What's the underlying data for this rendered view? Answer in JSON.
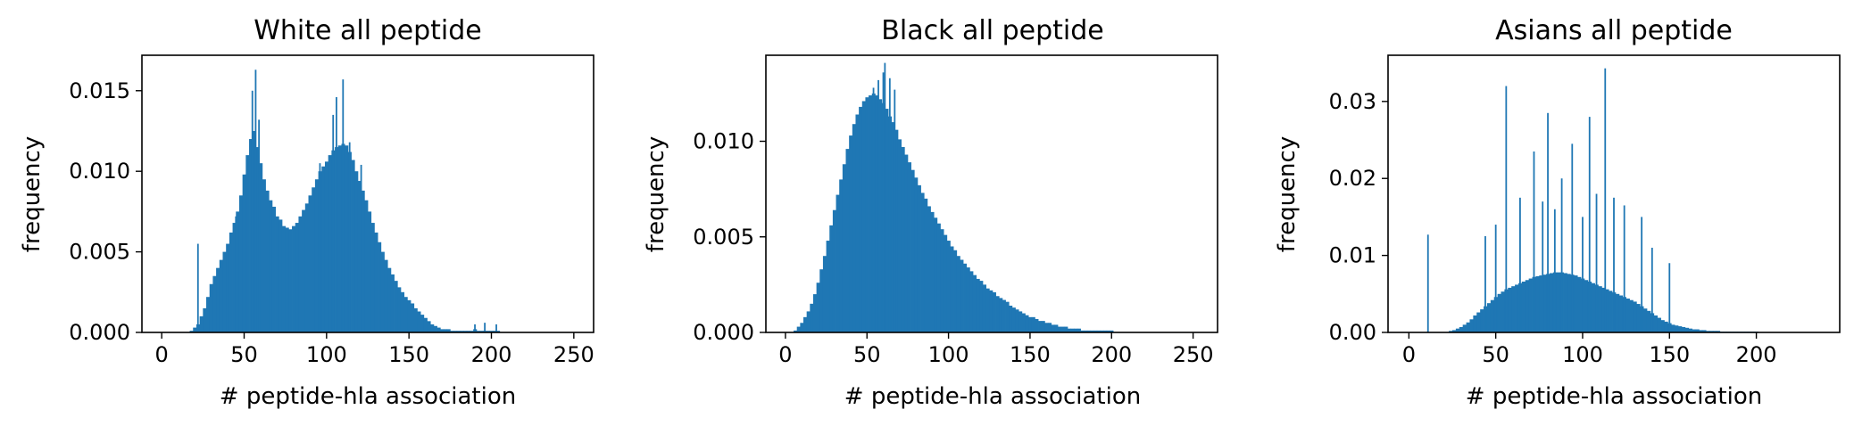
{
  "chart_data": [
    {
      "type": "bar",
      "title": "White  all peptide",
      "xlabel": "# peptide-hla association",
      "ylabel": "frequency",
      "xlim": [
        -12,
        262
      ],
      "ylim": [
        0,
        0.0172
      ],
      "xticks": [
        "0",
        "50",
        "100",
        "150",
        "200",
        "250"
      ],
      "yticks": [
        "0.000",
        "0.005",
        "0.010",
        "0.015"
      ],
      "x": [
        18,
        20,
        22,
        24,
        26,
        28,
        30,
        32,
        34,
        36,
        38,
        40,
        42,
        44,
        46,
        48,
        50,
        52,
        54,
        56,
        58,
        60,
        62,
        64,
        66,
        68,
        70,
        72,
        74,
        76,
        78,
        80,
        82,
        84,
        86,
        88,
        90,
        92,
        94,
        96,
        98,
        100,
        102,
        104,
        106,
        108,
        110,
        112,
        114,
        116,
        118,
        120,
        122,
        124,
        126,
        128,
        130,
        132,
        134,
        136,
        138,
        140,
        142,
        144,
        146,
        148,
        150,
        152,
        154,
        156,
        158,
        160,
        162,
        164,
        166,
        168,
        170,
        172,
        174,
        176,
        178,
        180,
        182,
        184,
        186,
        188,
        190,
        192,
        194,
        196,
        198,
        200,
        202,
        204
      ],
      "values": [
        0.0001,
        0.0003,
        0.0005,
        0.001,
        0.0015,
        0.0022,
        0.003,
        0.0035,
        0.004,
        0.0045,
        0.005,
        0.0055,
        0.0062,
        0.0068,
        0.0075,
        0.0085,
        0.0098,
        0.011,
        0.012,
        0.0125,
        0.0115,
        0.0105,
        0.0095,
        0.0088,
        0.0082,
        0.0078,
        0.0072,
        0.007,
        0.0066,
        0.0065,
        0.0064,
        0.0066,
        0.0068,
        0.0072,
        0.0076,
        0.008,
        0.0085,
        0.009,
        0.0095,
        0.01,
        0.0103,
        0.0106,
        0.011,
        0.0113,
        0.0115,
        0.0116,
        0.0117,
        0.0116,
        0.0112,
        0.0107,
        0.01,
        0.0094,
        0.0088,
        0.0082,
        0.0075,
        0.0068,
        0.0062,
        0.0056,
        0.005,
        0.0045,
        0.004,
        0.0036,
        0.0032,
        0.0028,
        0.0025,
        0.0022,
        0.002,
        0.0018,
        0.0015,
        0.0013,
        0.0011,
        0.0009,
        0.0007,
        0.0005,
        0.0004,
        0.0003,
        0.0002,
        0.0002,
        0.0002,
        0.0001,
        0.0001,
        0.0001,
        0.0001,
        0.0001,
        0.0001,
        0.0001,
        0.0002,
        0.0001,
        0.0001,
        0.0001,
        0.0001,
        0.0001,
        0.0001,
        0.0001
      ],
      "spikes": [
        [
          22,
          0.0055
        ],
        [
          45,
          0.0072
        ],
        [
          51,
          0.0098
        ],
        [
          55,
          0.015
        ],
        [
          57,
          0.0163
        ],
        [
          59,
          0.0132
        ],
        [
          96,
          0.0105
        ],
        [
          104,
          0.0135
        ],
        [
          106,
          0.0146
        ],
        [
          110,
          0.0157
        ],
        [
          114,
          0.0118
        ],
        [
          121,
          0.0104
        ],
        [
          190,
          0.0005
        ],
        [
          196,
          0.0006
        ],
        [
          203,
          0.0005
        ]
      ]
    },
    {
      "type": "bar",
      "title": "Black  all peptide",
      "xlabel": "# peptide-hla association",
      "ylabel": "frequency",
      "xlim": [
        -12,
        265
      ],
      "ylim": [
        0,
        0.0145
      ],
      "xticks": [
        "0",
        "50",
        "100",
        "150",
        "200",
        "250"
      ],
      "yticks": [
        "0.000",
        "0.005",
        "0.010"
      ],
      "x": [
        6,
        8,
        10,
        12,
        14,
        16,
        18,
        20,
        22,
        24,
        26,
        28,
        30,
        32,
        34,
        36,
        38,
        40,
        42,
        44,
        46,
        48,
        50,
        52,
        54,
        56,
        58,
        60,
        62,
        64,
        66,
        68,
        70,
        72,
        74,
        76,
        78,
        80,
        82,
        84,
        86,
        88,
        90,
        92,
        94,
        96,
        98,
        100,
        102,
        104,
        106,
        108,
        110,
        112,
        114,
        116,
        118,
        120,
        122,
        124,
        126,
        128,
        130,
        132,
        134,
        136,
        138,
        140,
        142,
        144,
        146,
        148,
        150,
        152,
        154,
        156,
        158,
        160,
        162,
        164,
        166,
        168,
        170,
        172,
        174,
        176,
        178,
        180,
        182,
        184,
        186,
        188,
        190,
        192,
        194,
        196,
        198,
        200
      ],
      "values": [
        0.0001,
        0.0003,
        0.0005,
        0.0008,
        0.0011,
        0.0015,
        0.002,
        0.0026,
        0.0033,
        0.004,
        0.0048,
        0.0056,
        0.0064,
        0.0072,
        0.008,
        0.0088,
        0.0096,
        0.0103,
        0.0109,
        0.0114,
        0.0118,
        0.0121,
        0.0123,
        0.0124,
        0.0125,
        0.0124,
        0.0122,
        0.012,
        0.0117,
        0.0113,
        0.011,
        0.0106,
        0.0101,
        0.0097,
        0.0093,
        0.0089,
        0.0085,
        0.0081,
        0.0077,
        0.0073,
        0.007,
        0.0066,
        0.0063,
        0.006,
        0.0057,
        0.0054,
        0.0051,
        0.0048,
        0.0045,
        0.0043,
        0.004,
        0.0038,
        0.0036,
        0.0034,
        0.0032,
        0.003,
        0.0028,
        0.0027,
        0.0025,
        0.0023,
        0.0022,
        0.0021,
        0.0019,
        0.0018,
        0.0017,
        0.0016,
        0.0014,
        0.0013,
        0.0012,
        0.0011,
        0.001,
        0.0009,
        0.0008,
        0.0008,
        0.0007,
        0.0006,
        0.0006,
        0.0005,
        0.0005,
        0.0004,
        0.0004,
        0.0003,
        0.0003,
        0.0003,
        0.0002,
        0.0002,
        0.0002,
        0.0002,
        0.0001,
        0.0001,
        0.0001,
        0.0001,
        0.0001,
        0.0001,
        0.0001,
        0.0001,
        0.0001,
        0.0001
      ],
      "spikes": [
        [
          54,
          0.0128
        ],
        [
          57,
          0.0132
        ],
        [
          60,
          0.0136
        ],
        [
          61,
          0.0141
        ],
        [
          64,
          0.0133
        ],
        [
          67,
          0.0127
        ]
      ]
    },
    {
      "type": "bar",
      "title": "Asians  all peptide",
      "xlabel": "# peptide-hla association",
      "ylabel": "frequency",
      "xlim": [
        -12,
        248
      ],
      "ylim": [
        0,
        0.036
      ],
      "xticks": [
        "0",
        "50",
        "100",
        "150",
        "200"
      ],
      "yticks": [
        "0.00",
        "0.01",
        "0.02",
        "0.03"
      ],
      "x": [
        24,
        26,
        28,
        30,
        32,
        34,
        36,
        38,
        40,
        42,
        44,
        46,
        48,
        50,
        52,
        54,
        56,
        58,
        60,
        62,
        64,
        66,
        68,
        70,
        72,
        74,
        76,
        78,
        80,
        82,
        84,
        86,
        88,
        90,
        92,
        94,
        96,
        98,
        100,
        102,
        104,
        106,
        108,
        110,
        112,
        114,
        116,
        118,
        120,
        122,
        124,
        126,
        128,
        130,
        132,
        134,
        136,
        138,
        140,
        142,
        144,
        146,
        148,
        150,
        152,
        154,
        156,
        158,
        160,
        162,
        164,
        166,
        168,
        170,
        172,
        174,
        176,
        178,
        180,
        182,
        184,
        186,
        188,
        190,
        192,
        194,
        196,
        198,
        200
      ],
      "values": [
        0.0002,
        0.0003,
        0.0005,
        0.0007,
        0.001,
        0.0013,
        0.0017,
        0.0022,
        0.0026,
        0.003,
        0.0034,
        0.0038,
        0.0042,
        0.0046,
        0.005,
        0.0053,
        0.0056,
        0.0058,
        0.006,
        0.0062,
        0.0064,
        0.0066,
        0.0068,
        0.007,
        0.0072,
        0.0073,
        0.0074,
        0.0075,
        0.0076,
        0.0077,
        0.0078,
        0.0078,
        0.0078,
        0.0077,
        0.0076,
        0.0075,
        0.0074,
        0.0072,
        0.007,
        0.0068,
        0.0066,
        0.0064,
        0.0062,
        0.006,
        0.0058,
        0.0056,
        0.0054,
        0.0052,
        0.005,
        0.0048,
        0.0046,
        0.0044,
        0.0042,
        0.004,
        0.0037,
        0.0034,
        0.0031,
        0.0028,
        0.0025,
        0.0022,
        0.0019,
        0.0016,
        0.0014,
        0.0012,
        0.001,
        0.0009,
        0.0008,
        0.0007,
        0.0006,
        0.0005,
        0.0004,
        0.0004,
        0.0003,
        0.0003,
        0.0002,
        0.0002,
        0.0002,
        0.0002,
        0.0001,
        0.0001,
        0.0001,
        0.0001,
        0.0001,
        0.0001,
        0.0001,
        0.0001,
        0.0001,
        0.0001,
        0.0001
      ],
      "spikes": [
        [
          11,
          0.0127
        ],
        [
          44,
          0.0125
        ],
        [
          50,
          0.014
        ],
        [
          56,
          0.032
        ],
        [
          64,
          0.0175
        ],
        [
          72,
          0.0235
        ],
        [
          77,
          0.017
        ],
        [
          80,
          0.0285
        ],
        [
          84,
          0.016
        ],
        [
          88,
          0.02
        ],
        [
          94,
          0.0245
        ],
        [
          100,
          0.015
        ],
        [
          104,
          0.028
        ],
        [
          108,
          0.018
        ],
        [
          113,
          0.0343
        ],
        [
          118,
          0.0175
        ],
        [
          124,
          0.0165
        ],
        [
          134,
          0.015
        ],
        [
          140,
          0.011
        ],
        [
          150,
          0.009
        ]
      ]
    }
  ],
  "style": {
    "bar_color": "#1f77b4",
    "axis_color": "#000000",
    "background": "#ffffff"
  }
}
